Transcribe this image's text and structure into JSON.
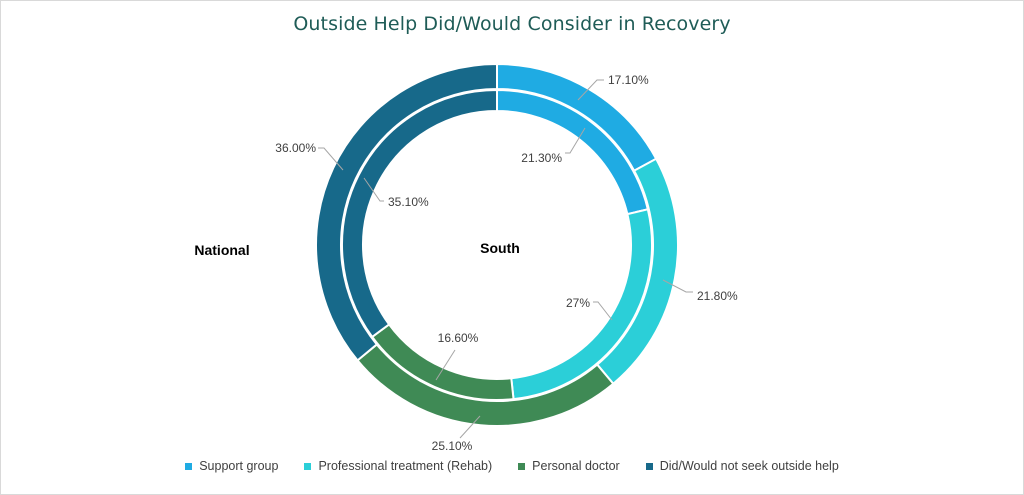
{
  "title": "Outside Help Did/Would Consider in Recovery",
  "chart_data": {
    "type": "doughnut",
    "title": "Outside Help Did/Would Consider in Recovery",
    "categories": [
      "Support group",
      "Professional treatment (Rehab)",
      "Personal doctor",
      "Did/Would not seek outside help"
    ],
    "colors": [
      "#1fabe3",
      "#2bcfd8",
      "#3f8a55",
      "#17698a"
    ],
    "series": [
      {
        "name": "National",
        "values": [
          17.1,
          21.8,
          25.1,
          36.0
        ],
        "labels": [
          "17.10%",
          "21.80%",
          "25.10%",
          "36.00%"
        ]
      },
      {
        "name": "South",
        "values": [
          21.3,
          27.0,
          16.6,
          35.1
        ],
        "labels": [
          "21.30%",
          "27%",
          "16.60%",
          "35.10%"
        ]
      }
    ],
    "legend_position": "bottom"
  }
}
